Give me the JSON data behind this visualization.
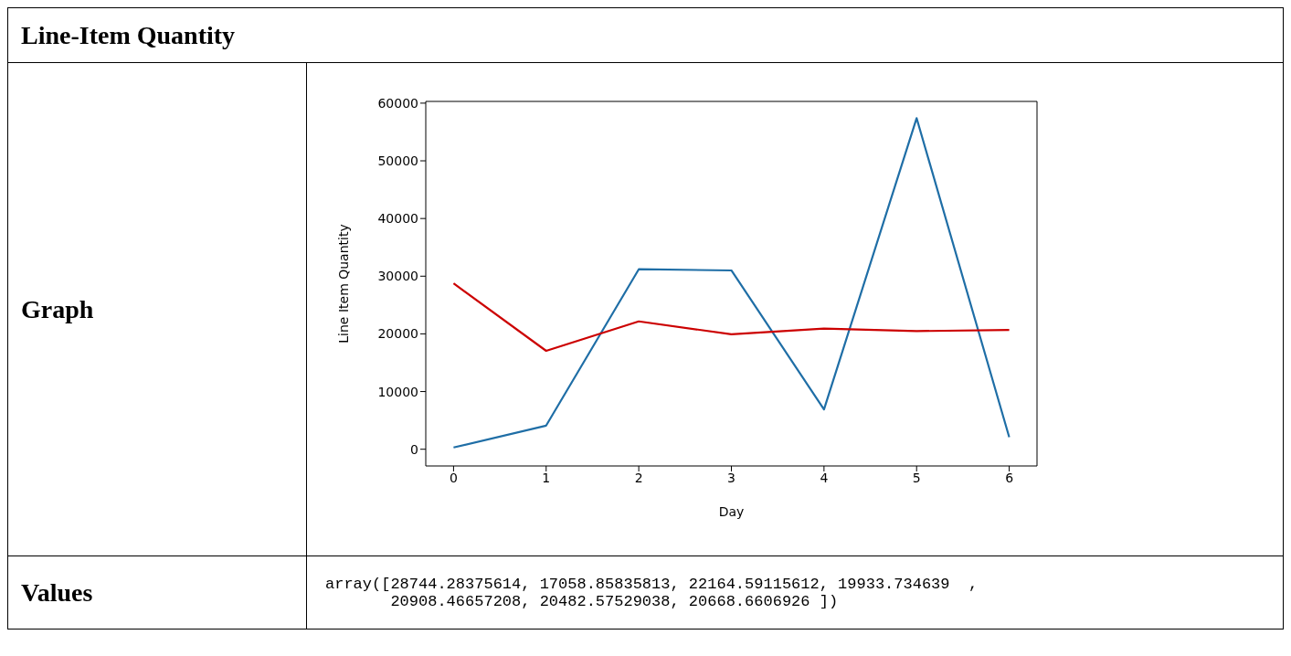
{
  "chart_data": {
    "type": "line",
    "title": "Line-Item Quantity",
    "xlabel": "Day",
    "ylabel": "Line Item Quantity",
    "x": [
      0,
      1,
      2,
      3,
      4,
      5,
      6
    ],
    "series": [
      {
        "color": "#1f6ea6",
        "values": [
          300,
          4100,
          31200,
          31000,
          6900,
          57400,
          2100
        ]
      },
      {
        "color": "#cc0000",
        "values": [
          28744.28375614,
          17058.85835813,
          22164.59115612,
          19933.734639,
          20908.46657208,
          20482.57529038,
          20668.6606926
        ]
      }
    ],
    "xlim": [
      -0.3,
      6.3
    ],
    "xticks": [
      0,
      1,
      2,
      3,
      4,
      5,
      6
    ],
    "ylim": [
      -2900,
      60300
    ],
    "yticks": [
      0,
      10000,
      20000,
      30000,
      40000,
      50000,
      60000
    ],
    "grid": false,
    "legend": false,
    "marker": "none",
    "line_style": "solid",
    "annotations": [
      "Graph",
      "Values",
      "array([28744.28375614, 17058.85835813, 22164.59115612, 19933.734639  ,",
      "       20908.46657208, 20482.57529038, 20668.6606926 ])"
    ]
  }
}
